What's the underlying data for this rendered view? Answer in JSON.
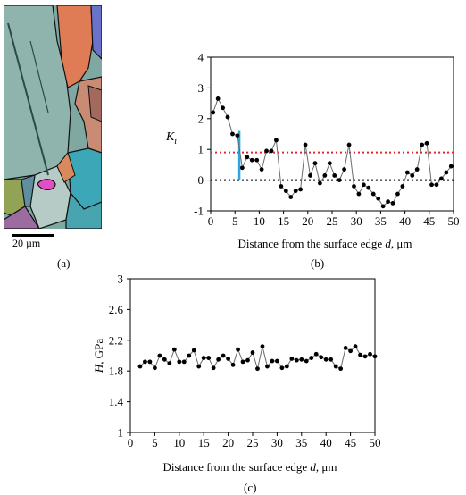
{
  "panels": {
    "a": {
      "label": "(a)",
      "scale_bar": "20 µm"
    },
    "b": {
      "label": "(b)"
    },
    "c": {
      "label": "(c)"
    }
  },
  "micrograph": {
    "base_color": "#7fa8a2",
    "grain_colors": [
      "#e07a55",
      "#6d72c8",
      "#8ab0a9",
      "#c7846c",
      "#3aa6b8",
      "#c34fb4",
      "#92a356",
      "#5f8f9f",
      "#b8cbc4",
      "#9a6c99"
    ]
  },
  "chart_data": [
    {
      "id": "b",
      "type": "line",
      "ylabel": "K_i",
      "ylabel_main": "K",
      "ylabel_sub": "i",
      "xlabel": "Distance from the surface edge d, μm",
      "xlabel_pre": "Distance from the surface edge ",
      "xlabel_var": "d",
      "xlabel_post": ", μm",
      "xlim": [
        0,
        50
      ],
      "ylim": [
        -1,
        4
      ],
      "xticks": [
        "0",
        "5",
        "10",
        "15",
        "20",
        "25",
        "30",
        "35",
        "40",
        "45",
        "50"
      ],
      "yticks": [
        "-1",
        "0",
        "1",
        "2",
        "3",
        "4"
      ],
      "grid": false,
      "reference_lines": [
        {
          "y": 0.9,
          "color": "#e8262a",
          "style": "dotted"
        },
        {
          "y": 0,
          "color": "#000000",
          "style": "dotted"
        }
      ],
      "marker_segment": {
        "x": 5.9,
        "y_from": 0,
        "y_to": 1.6,
        "color": "#29a8e0"
      },
      "series": [
        {
          "color": "#000000",
          "x": [
            0.5,
            1.5,
            2.5,
            3.5,
            4.5,
            5.5,
            6.5,
            7.5,
            8.5,
            9.5,
            10.5,
            11.5,
            12.5,
            13.5,
            14.5,
            15.5,
            16.5,
            17.5,
            18.5,
            19.5,
            20.5,
            21.5,
            22.5,
            23.5,
            24.5,
            25.5,
            26.5,
            27.5,
            28.5,
            29.5,
            30.5,
            31.5,
            32.5,
            33.5,
            34.5,
            35.5,
            36.5,
            37.5,
            38.5,
            39.5,
            40.5,
            41.5,
            42.5,
            43.5,
            44.5,
            45.5,
            46.5,
            47.5,
            48.5,
            49.5
          ],
          "y": [
            2.2,
            2.65,
            2.35,
            2.05,
            1.5,
            1.45,
            0.4,
            0.75,
            0.65,
            0.65,
            0.35,
            0.95,
            0.95,
            1.3,
            -0.2,
            -0.35,
            -0.55,
            -0.35,
            -0.3,
            1.15,
            0.15,
            0.55,
            -0.1,
            0.15,
            0.55,
            0.15,
            0.0,
            0.35,
            1.15,
            -0.2,
            -0.45,
            -0.15,
            -0.25,
            -0.45,
            -0.6,
            -0.85,
            -0.7,
            -0.75,
            -0.45,
            -0.2,
            0.25,
            0.15,
            0.35,
            1.15,
            1.2,
            -0.15,
            -0.15,
            0.05,
            0.25,
            0.45
          ]
        }
      ]
    },
    {
      "id": "c",
      "type": "line",
      "ylabel": "H, GPa",
      "ylabel_var": "H",
      "ylabel_post": ", GPa",
      "xlabel": "Distance from the surface edge d, μm",
      "xlabel_pre": "Distance from the surface edge ",
      "xlabel_var": "d",
      "xlabel_post": ", μm",
      "xlim": [
        0,
        50
      ],
      "ylim": [
        1,
        3
      ],
      "xticks": [
        "0",
        "5",
        "10",
        "15",
        "20",
        "25",
        "30",
        "35",
        "40",
        "45",
        "50"
      ],
      "yticks": [
        "1",
        "1.4",
        "1.8",
        "2.2",
        "2.6",
        "3"
      ],
      "grid": false,
      "series": [
        {
          "color": "#000000",
          "x": [
            2,
            3,
            4,
            5,
            6,
            7,
            8,
            9,
            10,
            11,
            12,
            13,
            14,
            15,
            16,
            17,
            18,
            19,
            20,
            21,
            22,
            23,
            24,
            25,
            26,
            27,
            28,
            29,
            30,
            31,
            32,
            33,
            34,
            35,
            36,
            37,
            38,
            39,
            40,
            41,
            42,
            43,
            44,
            45,
            46,
            47,
            48,
            49,
            50
          ],
          "y": [
            1.86,
            1.92,
            1.92,
            1.84,
            2.0,
            1.95,
            1.9,
            2.08,
            1.92,
            1.92,
            2.0,
            2.07,
            1.86,
            1.97,
            1.97,
            1.84,
            1.95,
            2.0,
            1.96,
            1.88,
            2.08,
            1.92,
            1.94,
            2.04,
            1.83,
            2.12,
            1.86,
            1.93,
            1.93,
            1.84,
            1.86,
            1.96,
            1.94,
            1.95,
            1.93,
            1.97,
            2.02,
            1.98,
            1.95,
            1.95,
            1.86,
            1.83,
            2.1,
            2.06,
            2.12,
            2.01,
            1.99,
            2.02,
            1.99
          ]
        }
      ]
    }
  ]
}
